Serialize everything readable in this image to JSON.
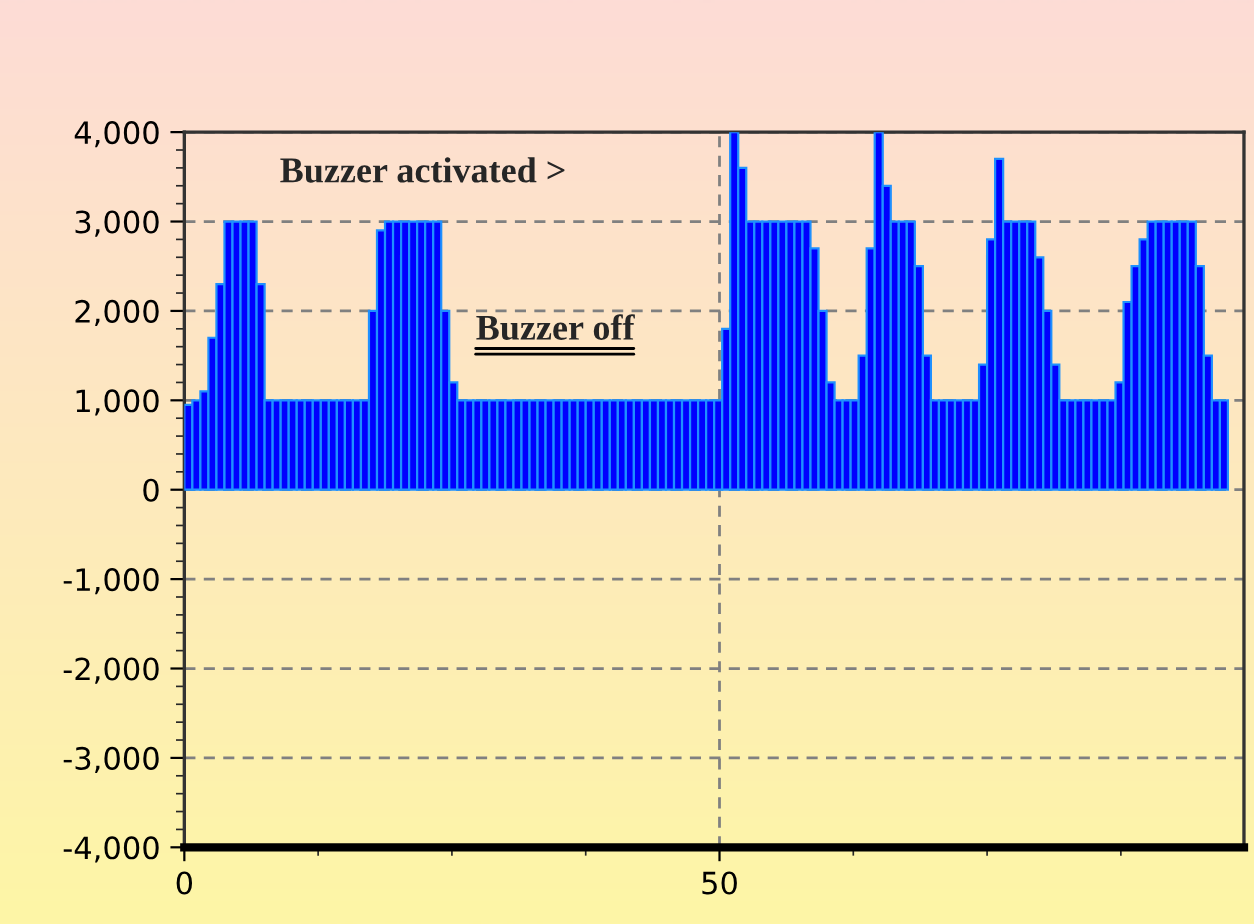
{
  "chart_data": {
    "type": "bar",
    "x": [
      0.375,
      1.125,
      1.875,
      2.625,
      3.375,
      4.125,
      4.875,
      5.625,
      6.375,
      7.125,
      7.875,
      8.625,
      9.375,
      10.125,
      10.875,
      11.625,
      12.375,
      13.125,
      13.875,
      14.625,
      15.375,
      16.125,
      16.875,
      17.625,
      18.375,
      19.125,
      19.875,
      20.625,
      21.375,
      22.125,
      22.875,
      23.625,
      24.375,
      25.125,
      25.875,
      26.625,
      27.375,
      28.125,
      28.875,
      29.625,
      30.375,
      31.125,
      31.875,
      32.625,
      33.375,
      34.125,
      34.875,
      35.625,
      36.375,
      37.125,
      37.875,
      38.625,
      39.375,
      40.125,
      40.875,
      41.625,
      42.375,
      43.125,
      43.875,
      44.625,
      45.375,
      46.125,
      46.875,
      47.625,
      48.375,
      49.125,
      49.875,
      50.625,
      51.375,
      52.125,
      52.875,
      53.625,
      54.375,
      55.125,
      55.875,
      56.625,
      57.375,
      58.125,
      58.875,
      59.625,
      60.375,
      61.125,
      61.875,
      62.625,
      63.375,
      64.125,
      64.875,
      65.625,
      66.375,
      67.125,
      67.875,
      68.625,
      69.375,
      70.125,
      70.875,
      71.625,
      72.375,
      73.125,
      73.875,
      74.625,
      75.375,
      76.125,
      76.875,
      77.625,
      78.375,
      79.125,
      79.875,
      80.625,
      81.375,
      82.125,
      82.875,
      83.625,
      84.375,
      85.125,
      85.875,
      86.625,
      87.375,
      88.125,
      88.875,
      89.625,
      90.375,
      91.125,
      91.875,
      92.625,
      93.375,
      94.125,
      94.875,
      95.625,
      96.375,
      97.125
    ],
    "series": [
      {
        "color": "#0000ff",
        "values": [
          950,
          1000,
          1100,
          1700,
          2300,
          3000,
          3000,
          3000,
          3000,
          2300,
          1000,
          1000,
          1000,
          1000,
          1000,
          1000,
          1000,
          1000,
          1000,
          1000,
          1000,
          1000,
          1000,
          2000,
          2900,
          3000,
          3000,
          3000,
          3000,
          3000,
          3000,
          3000,
          2000,
          1200,
          1000,
          1000,
          1000,
          1000,
          1000,
          1000,
          1000,
          1000,
          1000,
          1000,
          1000,
          1000,
          1000,
          1000,
          1000,
          1000,
          1000,
          1000,
          1000,
          1000,
          1000,
          1000,
          1000,
          1000,
          1000,
          1000,
          1000,
          1000,
          1000,
          1000,
          1000,
          1000,
          1000,
          1800,
          4000,
          3600,
          3000,
          3000,
          3000,
          3000,
          3000,
          3000,
          3000,
          3000,
          2700,
          2000,
          1200,
          1000,
          1000,
          1000,
          1500,
          2700,
          4000,
          3400,
          3000,
          3000,
          3000,
          2500,
          1500,
          1000,
          1000,
          1000,
          1000,
          1000,
          1000,
          1400,
          2800,
          3700,
          3000,
          3000,
          3000,
          3000,
          2600,
          2000,
          1400,
          1000,
          1000,
          1000,
          1000,
          1000,
          1000,
          1000,
          1200,
          2100,
          2500,
          2800,
          3000,
          3000,
          3000,
          3000,
          3000,
          3000,
          2500,
          1500,
          1000,
          1000
        ]
      }
    ],
    "xlim": [
      0,
      99
    ],
    "xticks": [
      0,
      50
    ],
    "ylim": [
      -4000,
      4000
    ],
    "yticks": [
      {
        "value": -4000,
        "label": "-4,000"
      },
      {
        "value": -3000,
        "label": "-3,000"
      },
      {
        "value": -2000,
        "label": "-2,000"
      },
      {
        "value": -1000,
        "label": "-1,000"
      },
      0,
      {
        "value": 1000,
        "label": "1,000"
      },
      {
        "value": 2000,
        "label": "2,000"
      },
      {
        "value": 3000,
        "label": "3,000"
      },
      {
        "value": 4000,
        "label": "4,000"
      }
    ],
    "grid": true,
    "annotations": [
      "Buzzer activated >",
      "Buzzer off"
    ]
  }
}
